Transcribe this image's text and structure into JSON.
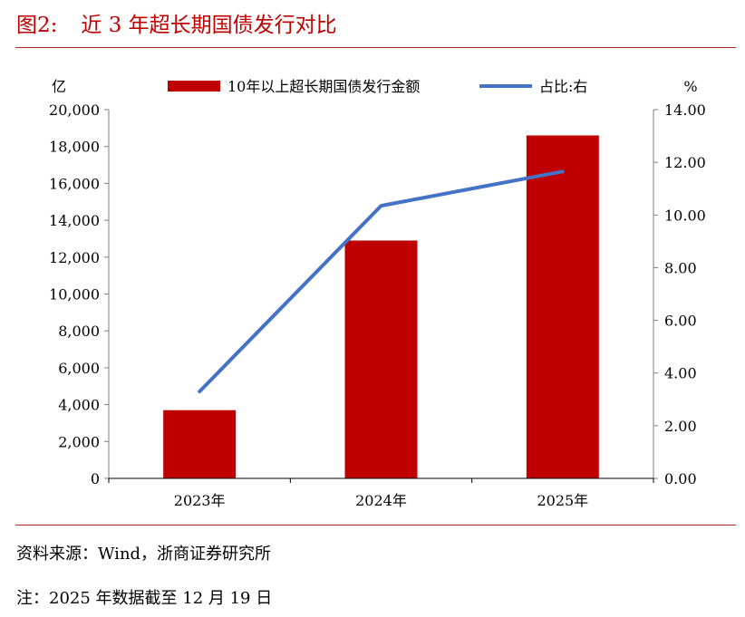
{
  "header": {
    "figure_label": "图2:",
    "title": "近 3 年超长期国债发行对比"
  },
  "footer": {
    "source": "资料来源：Wind，浙商证券研究所",
    "note": "注：2025 年数据截至 12 月 19 日"
  },
  "colors": {
    "bar": "#c00000",
    "line": "#4472c4",
    "title": "#c00000",
    "rule": "#b22222"
  },
  "chart_data": {
    "type": "bar",
    "categories": [
      "2023年",
      "2024年",
      "2025年"
    ],
    "series": [
      {
        "name": "10年以上超长期国债发行金额",
        "type": "bar",
        "axis": "left",
        "values": [
          3700,
          12900,
          18600
        ]
      },
      {
        "name": "占比:右",
        "type": "line",
        "axis": "right",
        "values": [
          3.3,
          10.35,
          11.65
        ]
      }
    ],
    "y_left": {
      "label": "亿",
      "min": 0,
      "max": 20000,
      "ticks": [
        "0",
        "2,000",
        "4,000",
        "6,000",
        "8,000",
        "10,000",
        "12,000",
        "14,000",
        "16,000",
        "18,000",
        "20,000"
      ]
    },
    "y_right": {
      "label": "%",
      "min": 0,
      "max": 14,
      "ticks": [
        "0.00",
        "2.00",
        "4.00",
        "6.00",
        "8.00",
        "10.00",
        "12.00",
        "14.00"
      ]
    },
    "legend_position": "top",
    "grid": false
  }
}
